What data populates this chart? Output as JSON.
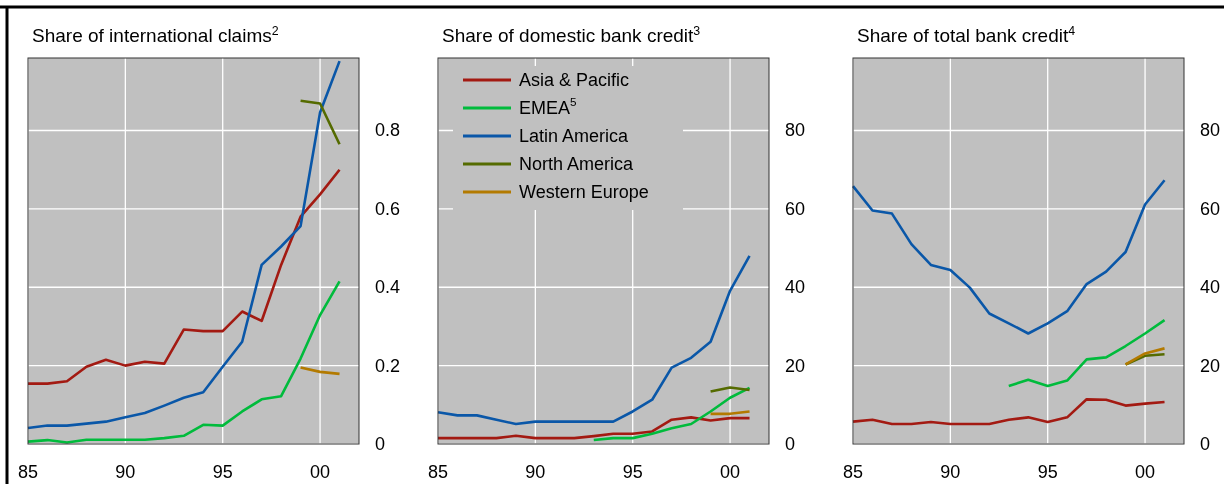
{
  "chart_data": [
    {
      "type": "line",
      "title": "Share of international claims$^{2}$",
      "x": [
        1985,
        1986,
        1987,
        1988,
        1989,
        1990,
        1991,
        1992,
        1993,
        1994,
        1995,
        1996,
        1997,
        1998,
        1999,
        2000,
        2001
      ],
      "xlim": [
        1985,
        2002
      ],
      "xticks": [
        {
          "value": 1985,
          "label": "85"
        },
        {
          "value": 1990,
          "label": "90"
        },
        {
          "value": 1995,
          "label": "95"
        },
        {
          "value": 2000,
          "label": "00"
        }
      ],
      "ylim": [
        0,
        0.985
      ],
      "yticks": [
        0,
        0.2,
        0.4,
        0.6,
        0.8
      ],
      "grid": true,
      "legend": false,
      "series": [
        {
          "color": "#a31a12",
          "values": [
            0.154,
            0.154,
            0.16,
            0.197,
            0.215,
            0.2,
            0.21,
            0.205,
            0.292,
            0.288,
            0.288,
            0.338,
            0.314,
            0.457,
            0.58,
            0.637,
            0.7
          ]
        },
        {
          "color": "#00bb3c",
          "values": [
            0.006,
            0.01,
            0.004,
            0.011,
            0.011,
            0.011,
            0.011,
            0.015,
            0.021,
            0.049,
            0.047,
            0.083,
            0.114,
            0.122,
            0.218,
            0.329,
            0.415
          ]
        },
        {
          "color": "#0a57a8",
          "values": [
            0.041,
            0.047,
            0.047,
            0.052,
            0.057,
            0.068,
            0.079,
            0.098,
            0.118,
            0.132,
            0.197,
            0.261,
            0.457,
            0.504,
            0.556,
            0.846,
            0.977
          ]
        },
        {
          "color": "#556b00",
          "values": [
            null,
            null,
            null,
            null,
            null,
            null,
            null,
            null,
            null,
            null,
            null,
            null,
            null,
            null,
            0.876,
            0.869,
            0.765
          ]
        },
        {
          "color": "#b37a00",
          "values": [
            null,
            null,
            null,
            null,
            null,
            null,
            null,
            null,
            null,
            null,
            null,
            null,
            null,
            null,
            0.195,
            0.184,
            0.179
          ]
        }
      ]
    },
    {
      "type": "line",
      "title": "Share of domestic bank credit$^{3}$",
      "x": [
        1985,
        1986,
        1987,
        1988,
        1989,
        1990,
        1991,
        1992,
        1993,
        1994,
        1995,
        1996,
        1997,
        1998,
        1999,
        2000,
        2001
      ],
      "xlim": [
        1985,
        2002
      ],
      "xticks": [
        {
          "value": 1985,
          "label": "85"
        },
        {
          "value": 1990,
          "label": "90"
        },
        {
          "value": 1995,
          "label": "95"
        },
        {
          "value": 2000,
          "label": "00"
        }
      ],
      "ylim": [
        0,
        98.5
      ],
      "yticks": [
        0,
        20,
        40,
        60,
        80
      ],
      "grid": true,
      "legend": "top left",
      "series": [
        {
          "name": "Asia & Pacific",
          "color": "#a31a12",
          "values": [
            1.5,
            1.5,
            1.5,
            1.5,
            2.1,
            1.5,
            1.5,
            1.5,
            2,
            2.6,
            2.6,
            3.2,
            6.2,
            6.8,
            6,
            6.6,
            6.6
          ]
        },
        {
          "name": "EMEA$^{5}$",
          "color": "#00bb3c",
          "values": [
            null,
            null,
            null,
            null,
            null,
            null,
            null,
            null,
            1,
            1.5,
            1.5,
            2.6,
            4,
            5.1,
            8.3,
            11.8,
            14.3
          ]
        },
        {
          "name": "Latin America",
          "color": "#0a57a8",
          "values": [
            8.1,
            7.3,
            7.3,
            6.2,
            5.1,
            5.7,
            5.7,
            5.7,
            5.7,
            5.7,
            8.3,
            11.3,
            19.5,
            22,
            26.1,
            39.1,
            48
          ]
        },
        {
          "name": "North America",
          "color": "#556b00",
          "values": [
            null,
            null,
            null,
            null,
            null,
            null,
            null,
            null,
            null,
            null,
            null,
            null,
            null,
            null,
            13.4,
            14.4,
            13.8
          ]
        },
        {
          "name": "Western Europe",
          "color": "#b37a00",
          "values": [
            null,
            null,
            null,
            null,
            null,
            null,
            null,
            null,
            null,
            null,
            null,
            null,
            null,
            null,
            7.7,
            7.7,
            8.3
          ]
        }
      ]
    },
    {
      "type": "line",
      "title": "Share of total bank credit$^{4}$",
      "x": [
        1985,
        1986,
        1987,
        1988,
        1989,
        1990,
        1991,
        1992,
        1993,
        1994,
        1995,
        1996,
        1997,
        1998,
        1999,
        2000,
        2001
      ],
      "xlim": [
        1985,
        2002
      ],
      "xticks": [
        {
          "value": 1985,
          "label": "85"
        },
        {
          "value": 1990,
          "label": "90"
        },
        {
          "value": 1995,
          "label": "95"
        },
        {
          "value": 2000,
          "label": "00"
        }
      ],
      "ylim": [
        0,
        98.5
      ],
      "yticks": [
        0,
        20,
        40,
        60,
        80
      ],
      "grid": true,
      "legend": false,
      "series": [
        {
          "color": "#a31a12",
          "values": [
            5.7,
            6.2,
            5.1,
            5.1,
            5.6,
            5.1,
            5.1,
            5.1,
            6.2,
            6.8,
            5.6,
            6.8,
            11.4,
            11.3,
            9.8,
            10.3,
            10.7
          ]
        },
        {
          "color": "#00bb3c",
          "values": [
            null,
            null,
            null,
            null,
            null,
            null,
            null,
            null,
            14.8,
            16.4,
            14.8,
            16.2,
            21.6,
            22.1,
            25,
            28.2,
            31.6
          ]
        },
        {
          "color": "#0a57a8",
          "values": [
            65.8,
            59.6,
            58.8,
            51,
            45.7,
            44.4,
            39.9,
            33.3,
            30.8,
            28.2,
            30.8,
            33.9,
            40.8,
            44,
            49,
            61.1,
            67.3
          ]
        },
        {
          "color": "#556b00",
          "values": [
            null,
            null,
            null,
            null,
            null,
            null,
            null,
            null,
            null,
            null,
            null,
            null,
            null,
            null,
            20.3,
            22.5,
            22.9
          ]
        },
        {
          "color": "#b37a00",
          "values": [
            null,
            null,
            null,
            null,
            null,
            null,
            null,
            null,
            null,
            null,
            null,
            null,
            null,
            null,
            20.3,
            23.1,
            24.4
          ]
        }
      ]
    }
  ]
}
